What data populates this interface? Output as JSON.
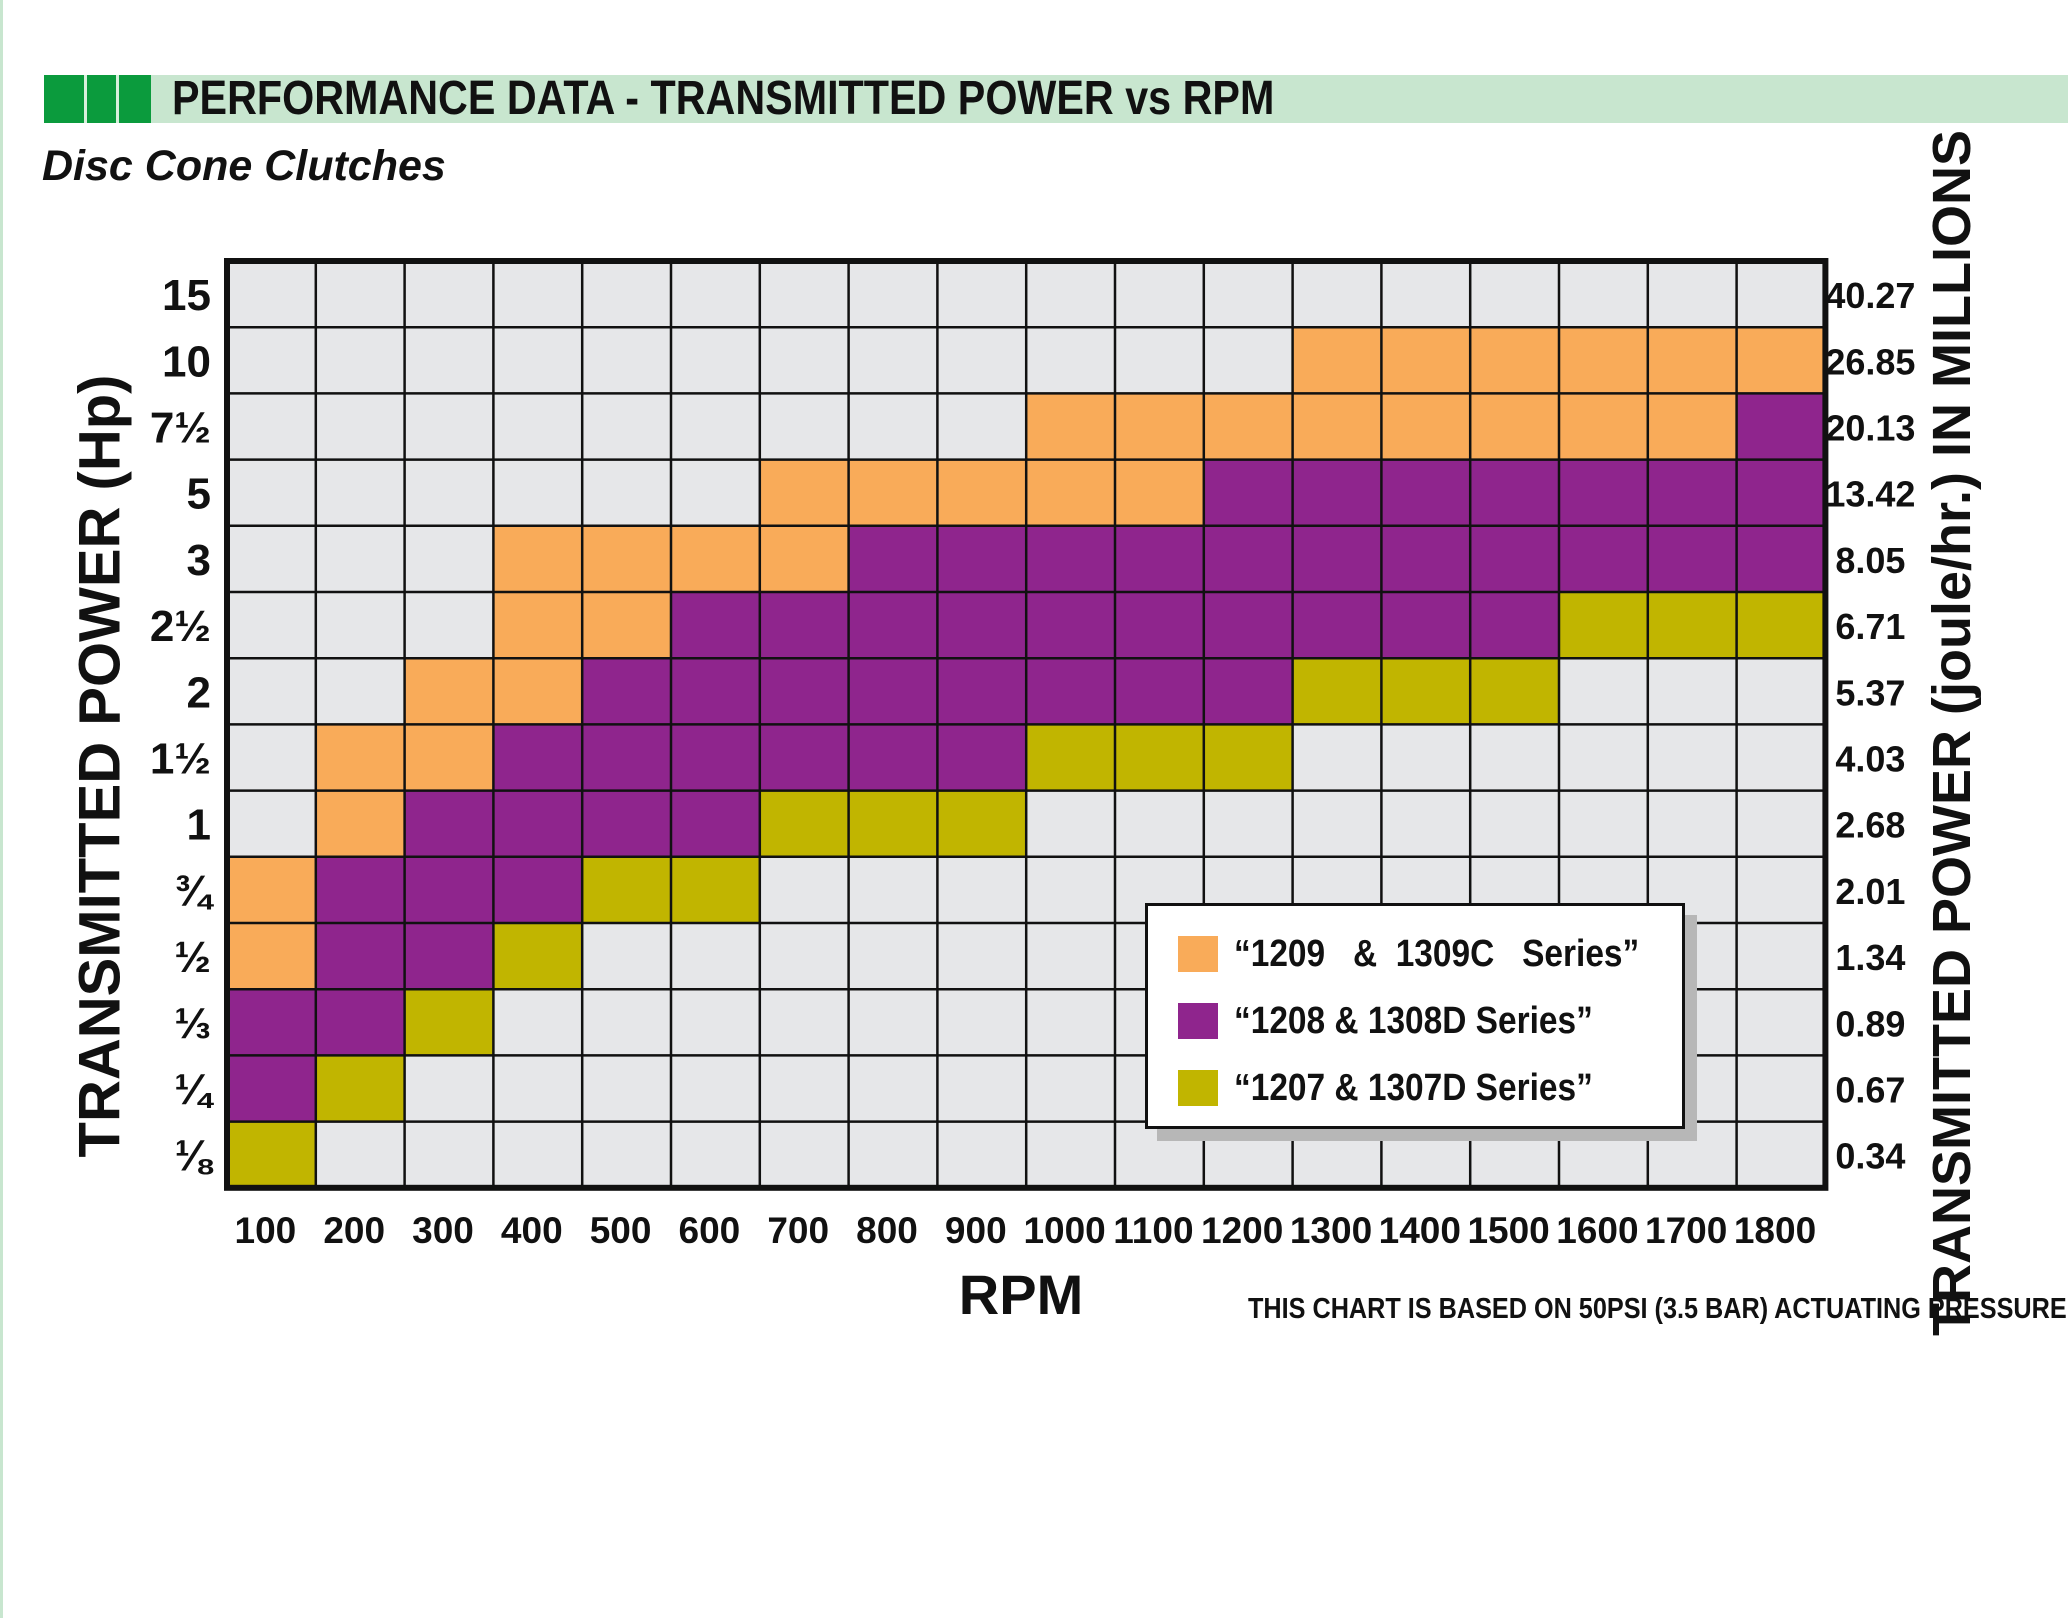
{
  "header": {
    "title": "PERFORMANCE DATA - TRANSMITTED POWER vs RPM",
    "subtitle": "Disc Cone Clutches",
    "band_color": "#c8e6cf",
    "accent_color": "#0b9b3d"
  },
  "footnote": "THIS CHART IS BASED ON 50PSI (3.5 BAR) ACTUATING PRESSURE",
  "chart_data": {
    "type": "heatmap",
    "title": "PERFORMANCE DATA - TRANSMITTED POWER vs RPM",
    "xlabel": "RPM",
    "ylabel": "TRANSMITTED POWER (Hp)",
    "y2label": "TRANSMITTED POWER (joule/hr.) IN MILLIONS",
    "x": [
      "100",
      "200",
      "300",
      "400",
      "500",
      "600",
      "700",
      "800",
      "900",
      "1000",
      "1100",
      "1200",
      "1300",
      "1400",
      "1500",
      "1600",
      "1700",
      "1800"
    ],
    "y": [
      "15",
      "10",
      "7½",
      "5",
      "3",
      "2½",
      "2",
      "1½",
      "1",
      "¾",
      "½",
      "⅓",
      "¼",
      "⅛"
    ],
    "y2": [
      "40.27",
      "26.85",
      "20.13",
      "13.42",
      "8.05",
      "6.71",
      "5.37",
      "4.03",
      "2.68",
      "2.01",
      "1.34",
      "0.89",
      "0.67",
      "0.34"
    ],
    "empty_color": "#e6e7e9",
    "grid": true,
    "series": [
      {
        "name": "“1209   &  1309C   Series”",
        "key": "1209",
        "color": "#f9ab59",
        "cells": [
          [
            1,
            12
          ],
          [
            1,
            13
          ],
          [
            1,
            14
          ],
          [
            1,
            15
          ],
          [
            1,
            16
          ],
          [
            1,
            17
          ],
          [
            2,
            9
          ],
          [
            2,
            10
          ],
          [
            2,
            11
          ],
          [
            2,
            12
          ],
          [
            2,
            13
          ],
          [
            2,
            14
          ],
          [
            2,
            15
          ],
          [
            2,
            16
          ],
          [
            3,
            6
          ],
          [
            3,
            7
          ],
          [
            3,
            8
          ],
          [
            3,
            9
          ],
          [
            3,
            10
          ],
          [
            4,
            3
          ],
          [
            4,
            4
          ],
          [
            4,
            5
          ],
          [
            4,
            6
          ],
          [
            5,
            3
          ],
          [
            5,
            4
          ],
          [
            6,
            2
          ],
          [
            6,
            3
          ],
          [
            7,
            1
          ],
          [
            7,
            2
          ],
          [
            8,
            1
          ],
          [
            9,
            0
          ],
          [
            10,
            0
          ]
        ]
      },
      {
        "name": "“1208 & 1308D Series”",
        "key": "1208",
        "color": "#8f258d",
        "cells": [
          [
            2,
            17
          ],
          [
            3,
            11
          ],
          [
            3,
            12
          ],
          [
            3,
            13
          ],
          [
            3,
            14
          ],
          [
            3,
            15
          ],
          [
            3,
            16
          ],
          [
            3,
            17
          ],
          [
            4,
            7
          ],
          [
            4,
            8
          ],
          [
            4,
            9
          ],
          [
            4,
            10
          ],
          [
            4,
            11
          ],
          [
            4,
            12
          ],
          [
            4,
            13
          ],
          [
            4,
            14
          ],
          [
            4,
            15
          ],
          [
            4,
            16
          ],
          [
            4,
            17
          ],
          [
            5,
            5
          ],
          [
            5,
            6
          ],
          [
            5,
            7
          ],
          [
            5,
            8
          ],
          [
            5,
            9
          ],
          [
            5,
            10
          ],
          [
            5,
            11
          ],
          [
            5,
            12
          ],
          [
            5,
            13
          ],
          [
            5,
            14
          ],
          [
            6,
            4
          ],
          [
            6,
            5
          ],
          [
            6,
            6
          ],
          [
            6,
            7
          ],
          [
            6,
            8
          ],
          [
            6,
            9
          ],
          [
            6,
            10
          ],
          [
            6,
            11
          ],
          [
            7,
            3
          ],
          [
            7,
            4
          ],
          [
            7,
            5
          ],
          [
            7,
            6
          ],
          [
            7,
            7
          ],
          [
            7,
            8
          ],
          [
            8,
            2
          ],
          [
            8,
            3
          ],
          [
            8,
            4
          ],
          [
            8,
            5
          ],
          [
            9,
            1
          ],
          [
            9,
            2
          ],
          [
            9,
            3
          ],
          [
            10,
            1
          ],
          [
            10,
            2
          ],
          [
            11,
            0
          ],
          [
            11,
            1
          ],
          [
            12,
            0
          ]
        ]
      },
      {
        "name": "“1207 & 1307D Series”",
        "key": "1207",
        "color": "#c1b500",
        "cells": [
          [
            5,
            15
          ],
          [
            5,
            16
          ],
          [
            5,
            17
          ],
          [
            6,
            12
          ],
          [
            6,
            13
          ],
          [
            6,
            14
          ],
          [
            7,
            9
          ],
          [
            7,
            10
          ],
          [
            7,
            11
          ],
          [
            8,
            6
          ],
          [
            8,
            7
          ],
          [
            8,
            8
          ],
          [
            9,
            4
          ],
          [
            9,
            5
          ],
          [
            10,
            3
          ],
          [
            11,
            2
          ],
          [
            12,
            1
          ],
          [
            13,
            0
          ]
        ]
      }
    ],
    "legend": "inside, lower-right"
  }
}
